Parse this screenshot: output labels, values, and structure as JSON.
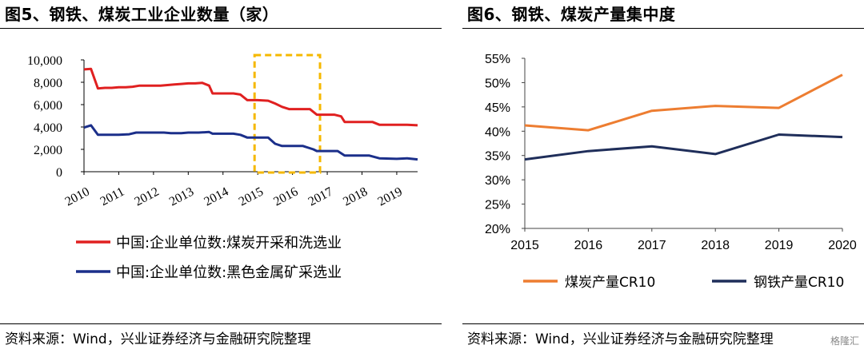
{
  "left": {
    "title": "图5、钢铁、煤炭工业企业数量（家）",
    "source": "资料来源：Wind，兴业证券经济与金融研究院整理",
    "chart_data": {
      "type": "line",
      "yticks": [
        "0",
        "2,000",
        "4,000",
        "6,000",
        "8,000",
        "10,000"
      ],
      "ylim": [
        0,
        10000
      ],
      "xticks": [
        "2010",
        "2011",
        "2012",
        "2013",
        "2014",
        "2015",
        "2016",
        "2017",
        "2018",
        "2019"
      ],
      "xlim": [
        2010,
        2019.6
      ],
      "highlight_range": [
        2015,
        2016.7
      ],
      "highlight_color": "#F5B800",
      "series": [
        {
          "name": "中国:企业单位数:煤炭开采和洗选业",
          "color": "#E02020",
          "points": [
            [
              2010,
              9150
            ],
            [
              2010.2,
              9200
            ],
            [
              2010.4,
              7450
            ],
            [
              2010.6,
              7500
            ],
            [
              2010.8,
              7500
            ],
            [
              2011,
              7550
            ],
            [
              2011.2,
              7550
            ],
            [
              2011.4,
              7600
            ],
            [
              2011.6,
              7700
            ],
            [
              2011.8,
              7700
            ],
            [
              2012,
              7700
            ],
            [
              2012.2,
              7700
            ],
            [
              2012.4,
              7750
            ],
            [
              2012.6,
              7800
            ],
            [
              2012.8,
              7850
            ],
            [
              2013,
              7900
            ],
            [
              2013.2,
              7900
            ],
            [
              2013.4,
              7950
            ],
            [
              2013.6,
              7700
            ],
            [
              2013.7,
              7000
            ],
            [
              2014,
              7000
            ],
            [
              2014.3,
              7000
            ],
            [
              2014.5,
              6900
            ],
            [
              2014.7,
              6400
            ],
            [
              2015,
              6400
            ],
            [
              2015.3,
              6350
            ],
            [
              2015.5,
              6100
            ],
            [
              2015.7,
              5800
            ],
            [
              2015.9,
              5600
            ],
            [
              2016.3,
              5600
            ],
            [
              2016.5,
              5600
            ],
            [
              2016.7,
              5100
            ],
            [
              2017.2,
              5100
            ],
            [
              2017.4,
              4950
            ],
            [
              2017.5,
              4450
            ],
            [
              2017.8,
              4450
            ],
            [
              2018,
              4450
            ],
            [
              2018.3,
              4450
            ],
            [
              2018.5,
              4200
            ],
            [
              2019,
              4200
            ],
            [
              2019.3,
              4200
            ],
            [
              2019.6,
              4150
            ]
          ]
        },
        {
          "name": "中国:企业单位数:黑色金属矿采选业",
          "color": "#1B2F8A",
          "points": [
            [
              2010,
              3950
            ],
            [
              2010.2,
              4150
            ],
            [
              2010.4,
              3300
            ],
            [
              2010.7,
              3300
            ],
            [
              2011,
              3300
            ],
            [
              2011.3,
              3350
            ],
            [
              2011.5,
              3500
            ],
            [
              2011.8,
              3500
            ],
            [
              2012,
              3500
            ],
            [
              2012.3,
              3500
            ],
            [
              2012.5,
              3450
            ],
            [
              2012.8,
              3450
            ],
            [
              2013,
              3500
            ],
            [
              2013.3,
              3500
            ],
            [
              2013.6,
              3550
            ],
            [
              2013.7,
              3400
            ],
            [
              2014,
              3400
            ],
            [
              2014.3,
              3400
            ],
            [
              2014.5,
              3300
            ],
            [
              2014.7,
              3050
            ],
            [
              2015,
              3050
            ],
            [
              2015.3,
              3050
            ],
            [
              2015.5,
              2500
            ],
            [
              2015.7,
              2300
            ],
            [
              2016,
              2300
            ],
            [
              2016.3,
              2300
            ],
            [
              2016.6,
              2000
            ],
            [
              2016.7,
              1850
            ],
            [
              2017,
              1850
            ],
            [
              2017.3,
              1850
            ],
            [
              2017.5,
              1450
            ],
            [
              2017.8,
              1450
            ],
            [
              2018.2,
              1450
            ],
            [
              2018.5,
              1200
            ],
            [
              2019,
              1150
            ],
            [
              2019.3,
              1200
            ],
            [
              2019.6,
              1100
            ]
          ]
        }
      ]
    }
  },
  "right": {
    "title": "图6、钢铁、煤炭产量集中度",
    "source": "资料来源：Wind，兴业证券经济与金融研究院整理",
    "watermark": "格隆汇",
    "chart_data": {
      "type": "line",
      "x": [
        2015,
        2016,
        2017,
        2018,
        2019,
        2020
      ],
      "xticks": [
        "2015",
        "2016",
        "2017",
        "2018",
        "2019",
        "2020"
      ],
      "yticks": [
        "20%",
        "25%",
        "30%",
        "35%",
        "40%",
        "45%",
        "50%",
        "55%"
      ],
      "ylim": [
        20,
        55
      ],
      "series": [
        {
          "name": "煤炭产量CR10",
          "color": "#ED7D31",
          "values": [
            41.2,
            40.2,
            44.2,
            45.2,
            44.8,
            51.6
          ]
        },
        {
          "name": "钢铁产量CR10",
          "color": "#1F2E5A",
          "values": [
            34.2,
            35.9,
            36.9,
            35.3,
            39.3,
            38.8
          ]
        }
      ]
    }
  }
}
